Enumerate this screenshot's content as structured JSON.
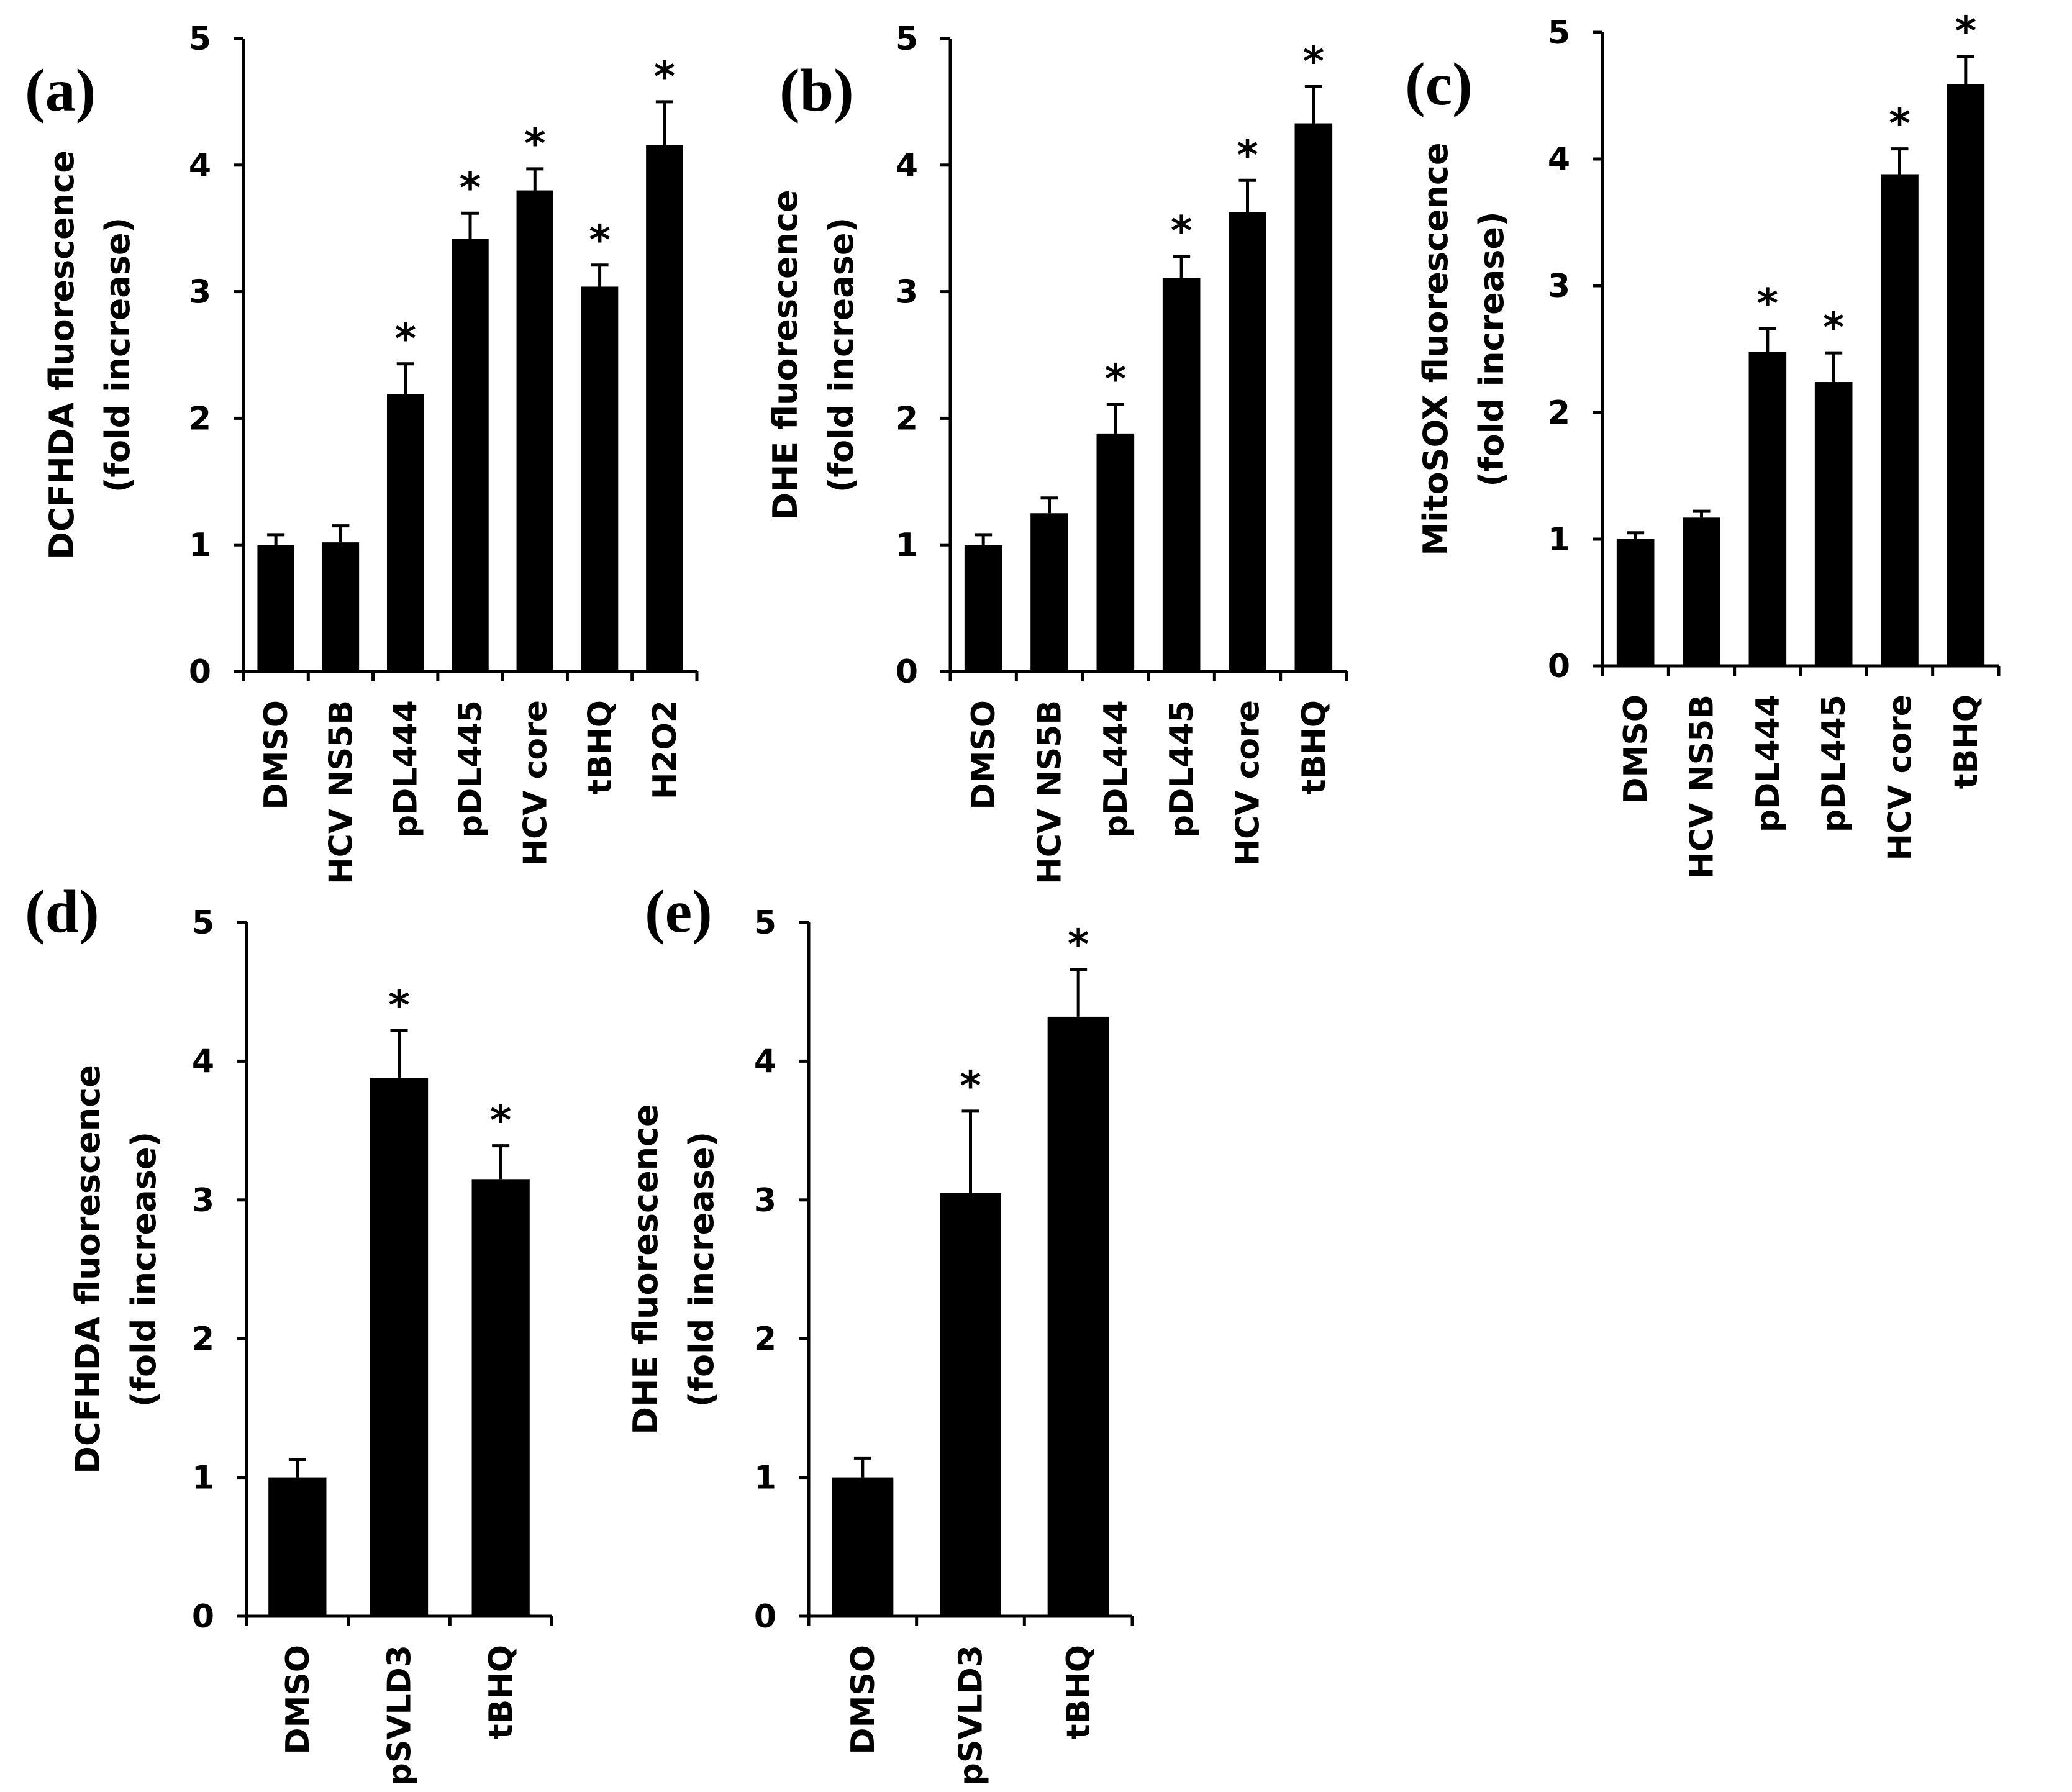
{
  "figure": {
    "panels": [
      "a",
      "b",
      "c",
      "d",
      "e"
    ]
  },
  "chart_data": [
    {
      "id": "a",
      "letter": "(a)",
      "type": "bar",
      "ylabel_line1": "DCFHDA fluorescence",
      "ylabel_line2": "(fold increase)",
      "ylim": [
        0,
        5
      ],
      "yticks": [
        0,
        1,
        2,
        3,
        4,
        5
      ],
      "categories": [
        "DMSO",
        "HCV NS5B",
        "pDL444",
        "pDL445",
        "HCV core",
        "tBHQ",
        "H2O2"
      ],
      "values": [
        1.0,
        1.02,
        2.19,
        3.42,
        3.8,
        3.04,
        4.16
      ],
      "errors": [
        0.08,
        0.13,
        0.24,
        0.2,
        0.17,
        0.17,
        0.34
      ],
      "significant": [
        false,
        false,
        true,
        true,
        true,
        true,
        true
      ],
      "sig_symbol": "*",
      "color": "#000000"
    },
    {
      "id": "b",
      "letter": "(b)",
      "type": "bar",
      "ylabel_line1": "DHE fluorescence",
      "ylabel_line2": "(fold increase)",
      "ylim": [
        0,
        5
      ],
      "yticks": [
        0,
        1,
        2,
        3,
        4,
        5
      ],
      "categories": [
        "DMSO",
        "HCV NS5B",
        "pDL444",
        "pDL445",
        "HCV core",
        "tBHQ"
      ],
      "values": [
        1.0,
        1.25,
        1.88,
        3.11,
        3.63,
        4.33
      ],
      "errors": [
        0.08,
        0.12,
        0.23,
        0.17,
        0.25,
        0.29
      ],
      "significant": [
        false,
        false,
        true,
        true,
        true,
        true
      ],
      "sig_symbol": "*",
      "color": "#000000"
    },
    {
      "id": "c",
      "letter": "(c)",
      "type": "bar",
      "ylabel_line1": "MitoSOX fluorescence",
      "ylabel_line2": "(fold increase)",
      "ylim": [
        0,
        5
      ],
      "yticks": [
        0,
        1,
        2,
        3,
        4,
        5
      ],
      "categories": [
        "DMSO",
        "HCV NS5B",
        "pDL444",
        "pDL445",
        "HCV core",
        "tBHQ"
      ],
      "values": [
        1.0,
        1.17,
        2.48,
        2.24,
        3.88,
        4.59
      ],
      "errors": [
        0.05,
        0.05,
        0.18,
        0.23,
        0.2,
        0.22
      ],
      "significant": [
        false,
        false,
        true,
        true,
        true,
        true
      ],
      "sig_symbol": "*",
      "color": "#000000"
    },
    {
      "id": "d",
      "letter": "(d)",
      "type": "bar",
      "ylabel_line1": "DCFHDA fluorescence",
      "ylabel_line2": "(fold increase)",
      "ylim": [
        0,
        5
      ],
      "yticks": [
        0,
        1,
        2,
        3,
        4,
        5
      ],
      "categories": [
        "DMSO",
        "pSVLD3",
        "tBHQ"
      ],
      "values": [
        1.0,
        3.88,
        3.15
      ],
      "errors": [
        0.13,
        0.34,
        0.24
      ],
      "significant": [
        false,
        true,
        true
      ],
      "sig_symbol": "*",
      "color": "#000000"
    },
    {
      "id": "e",
      "letter": "(e)",
      "type": "bar",
      "ylabel_line1": "DHE fluorescence",
      "ylabel_line2": "(fold increase)",
      "ylim": [
        0,
        5
      ],
      "yticks": [
        0,
        1,
        2,
        3,
        4,
        5
      ],
      "categories": [
        "DMSO",
        "pSVLD3",
        "tBHQ"
      ],
      "values": [
        1.0,
        3.05,
        4.32
      ],
      "errors": [
        0.14,
        0.59,
        0.34
      ],
      "significant": [
        false,
        true,
        true
      ],
      "sig_symbol": "*",
      "color": "#000000"
    }
  ]
}
